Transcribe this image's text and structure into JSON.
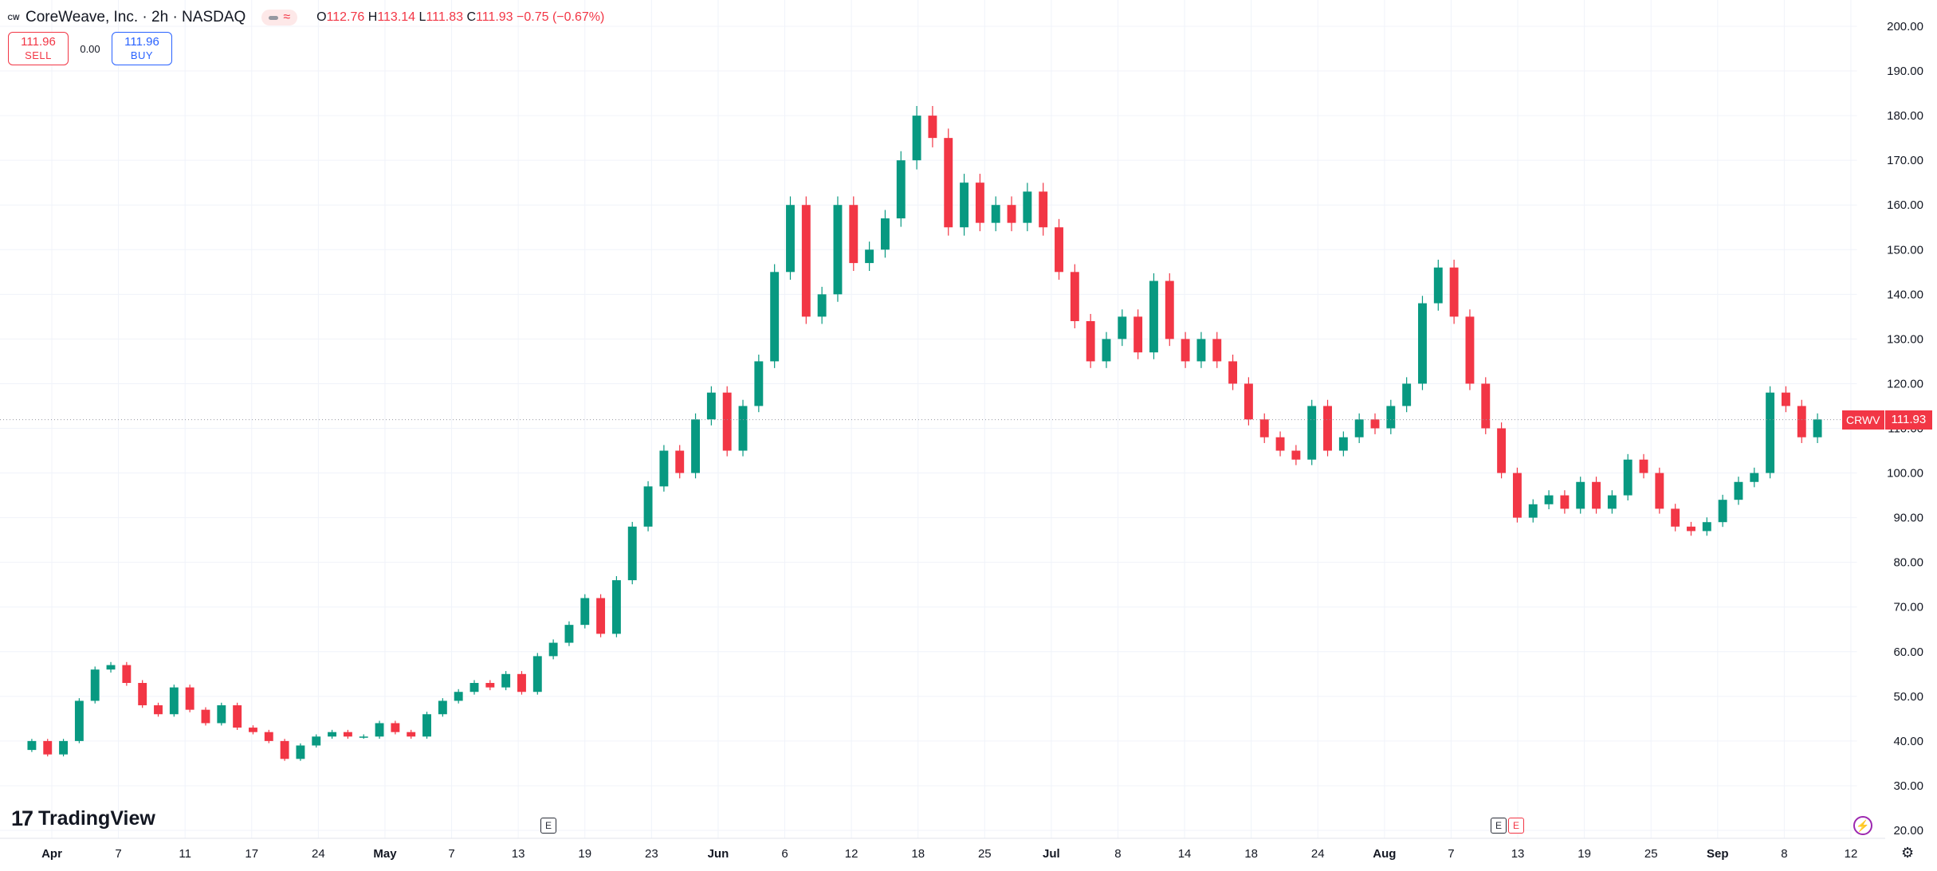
{
  "header": {
    "logo_text": "CW",
    "title": "CoreWeave, Inc. · 2h · NASDAQ",
    "ohlc": {
      "o_label": "O",
      "o": "112.76",
      "h_label": "H",
      "h": "113.14",
      "l_label": "L",
      "l": "111.83",
      "c_label": "C",
      "c": "111.93",
      "change": "−0.75 (−0.67%)"
    }
  },
  "trade": {
    "sell_price": "111.96",
    "sell_label": "SELL",
    "spread": "0.00",
    "buy_price": "111.96",
    "buy_label": "BUY"
  },
  "branding": {
    "logo_mark": "17",
    "logo_text": "TradingView"
  },
  "events": [
    {
      "label": "E",
      "x_label": "May 15"
    },
    {
      "label": "E",
      "x_label": "Aug 12"
    },
    {
      "label": "E",
      "x_label": "Aug 13"
    }
  ],
  "last_price": {
    "symbol": "CRWV",
    "value": "111.93"
  },
  "colors": {
    "up": "#089981",
    "down": "#f23645",
    "grid": "#f0f3fa",
    "text": "#131722"
  },
  "chart_data": {
    "type": "candlestick",
    "symbol": "CRWV",
    "interval": "2h",
    "ylim": [
      20,
      200
    ],
    "yticks": [
      "20.00",
      "30.00",
      "40.00",
      "50.00",
      "60.00",
      "70.00",
      "80.00",
      "90.00",
      "100.00",
      "110.00",
      "120.00",
      "130.00",
      "140.00",
      "150.00",
      "160.00",
      "170.00",
      "180.00",
      "190.00",
      "200.00"
    ],
    "xticks": [
      "Apr",
      "7",
      "11",
      "17",
      "24",
      "May",
      "7",
      "13",
      "19",
      "23",
      "Jun",
      "6",
      "12",
      "18",
      "25",
      "Jul",
      "8",
      "14",
      "18",
      "24",
      "Aug",
      "7",
      "13",
      "19",
      "25",
      "Sep",
      "8",
      "12"
    ],
    "grid": true,
    "last_close": 111.93,
    "series": [
      {
        "name": "CRWV",
        "points": [
          [
            "Mar 28",
            38,
            40
          ],
          [
            "Mar 31",
            40,
            37
          ],
          [
            "Apr 1",
            37,
            40
          ],
          [
            "Apr 2",
            40,
            49
          ],
          [
            "Apr 3",
            49,
            56
          ],
          [
            "Apr 4",
            56,
            57
          ],
          [
            "Apr 7",
            57,
            53
          ],
          [
            "Apr 8",
            53,
            48
          ],
          [
            "Apr 9",
            48,
            46
          ],
          [
            "Apr 10",
            46,
            52
          ],
          [
            "Apr 11",
            52,
            47
          ],
          [
            "Apr 14",
            47,
            44
          ],
          [
            "Apr 15",
            44,
            48
          ],
          [
            "Apr 16",
            48,
            43
          ],
          [
            "Apr 17",
            43,
            42
          ],
          [
            "Apr 21",
            42,
            40
          ],
          [
            "Apr 22",
            40,
            36
          ],
          [
            "Apr 23",
            36,
            39
          ],
          [
            "Apr 24",
            39,
            41
          ],
          [
            "Apr 25",
            41,
            42
          ],
          [
            "Apr 28",
            42,
            41
          ],
          [
            "Apr 29",
            41,
            41
          ],
          [
            "Apr 30",
            41,
            44
          ],
          [
            "May 1",
            44,
            42
          ],
          [
            "May 2",
            42,
            41
          ],
          [
            "May 5",
            41,
            46
          ],
          [
            "May 6",
            46,
            49
          ],
          [
            "May 7",
            49,
            51
          ],
          [
            "May 8",
            51,
            53
          ],
          [
            "May 9",
            53,
            52
          ],
          [
            "May 12",
            52,
            55
          ],
          [
            "May 13",
            55,
            51
          ],
          [
            "May 14",
            51,
            59
          ],
          [
            "May 15",
            59,
            62
          ],
          [
            "May 16",
            62,
            66
          ],
          [
            "May 19",
            66,
            72
          ],
          [
            "May 20",
            72,
            64
          ],
          [
            "May 21",
            64,
            76
          ],
          [
            "May 22",
            76,
            88
          ],
          [
            "May 23",
            88,
            97
          ],
          [
            "May 27",
            97,
            105
          ],
          [
            "May 28",
            105,
            100
          ],
          [
            "May 29",
            100,
            112
          ],
          [
            "May 30",
            112,
            118
          ],
          [
            "Jun 2",
            118,
            105
          ],
          [
            "Jun 3",
            105,
            115
          ],
          [
            "Jun 4",
            115,
            125
          ],
          [
            "Jun 5",
            125,
            145
          ],
          [
            "Jun 6",
            145,
            160
          ],
          [
            "Jun 9",
            160,
            135
          ],
          [
            "Jun 10",
            135,
            140
          ],
          [
            "Jun 11",
            140,
            160
          ],
          [
            "Jun 12",
            160,
            147
          ],
          [
            "Jun 13",
            147,
            150
          ],
          [
            "Jun 16",
            150,
            157
          ],
          [
            "Jun 17",
            157,
            170
          ],
          [
            "Jun 18",
            170,
            180
          ],
          [
            "Jun 20",
            180,
            175
          ],
          [
            "Jun 23",
            175,
            155
          ],
          [
            "Jun 24",
            155,
            165
          ],
          [
            "Jun 25",
            165,
            156
          ],
          [
            "Jun 26",
            156,
            160
          ],
          [
            "Jun 27",
            160,
            156
          ],
          [
            "Jun 30",
            156,
            163
          ],
          [
            "Jul 1",
            163,
            155
          ],
          [
            "Jul 2",
            155,
            145
          ],
          [
            "Jul 3",
            145,
            134
          ],
          [
            "Jul 7",
            134,
            125
          ],
          [
            "Jul 8",
            125,
            130
          ],
          [
            "Jul 9",
            130,
            135
          ],
          [
            "Jul 10",
            135,
            127
          ],
          [
            "Jul 11",
            127,
            143
          ],
          [
            "Jul 14",
            143,
            130
          ],
          [
            "Jul 15",
            130,
            125
          ],
          [
            "Jul 16",
            125,
            130
          ],
          [
            "Jul 17",
            130,
            125
          ],
          [
            "Jul 18",
            125,
            120
          ],
          [
            "Jul 21",
            120,
            112
          ],
          [
            "Jul 22",
            112,
            108
          ],
          [
            "Jul 23",
            108,
            105
          ],
          [
            "Jul 24",
            105,
            103
          ],
          [
            "Jul 25",
            103,
            115
          ],
          [
            "Jul 28",
            115,
            105
          ],
          [
            "Jul 29",
            105,
            108
          ],
          [
            "Jul 30",
            108,
            112
          ],
          [
            "Jul 31",
            112,
            110
          ],
          [
            "Aug 1",
            110,
            115
          ],
          [
            "Aug 4",
            115,
            120
          ],
          [
            "Aug 5",
            120,
            138
          ],
          [
            "Aug 6",
            138,
            146
          ],
          [
            "Aug 7",
            146,
            135
          ],
          [
            "Aug 8",
            135,
            120
          ],
          [
            "Aug 11",
            120,
            110
          ],
          [
            "Aug 12",
            110,
            100
          ],
          [
            "Aug 13",
            100,
            90
          ],
          [
            "Aug 14",
            90,
            93
          ],
          [
            "Aug 15",
            93,
            95
          ],
          [
            "Aug 18",
            95,
            92
          ],
          [
            "Aug 19",
            92,
            98
          ],
          [
            "Aug 20",
            98,
            92
          ],
          [
            "Aug 21",
            92,
            95
          ],
          [
            "Aug 22",
            95,
            103
          ],
          [
            "Aug 25",
            103,
            100
          ],
          [
            "Aug 26",
            100,
            92
          ],
          [
            "Aug 27",
            92,
            88
          ],
          [
            "Aug 28",
            88,
            87
          ],
          [
            "Aug 29",
            87,
            89
          ],
          [
            "Sep 2",
            89,
            94
          ],
          [
            "Sep 3",
            94,
            98
          ],
          [
            "Sep 4",
            98,
            100
          ],
          [
            "Sep 5",
            100,
            118
          ],
          [
            "Sep 8",
            118,
            115
          ],
          [
            "Sep 9",
            115,
            108
          ],
          [
            "Sep 10",
            108,
            112
          ]
        ]
      }
    ]
  }
}
